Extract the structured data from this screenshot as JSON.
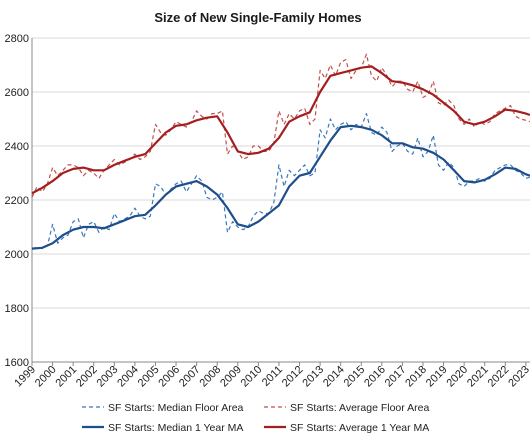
{
  "chart_data": {
    "type": "line",
    "title": "Size of New Single-Family Homes",
    "xlabel": "",
    "ylabel": "",
    "xlim": [
      1999,
      2023.2
    ],
    "ylim": [
      1600,
      2800
    ],
    "y_ticks": [
      "1600",
      "1800",
      "2000",
      "2200",
      "2400",
      "2600",
      "2800"
    ],
    "x_ticks": [
      "1999",
      "2000",
      "2001",
      "2002",
      "2003",
      "2004",
      "2005",
      "2006",
      "2007",
      "2008",
      "2009",
      "2010",
      "2011",
      "2012",
      "2013",
      "2014",
      "2015",
      "2016",
      "2017",
      "2018",
      "2019",
      "2020",
      "2021",
      "2022",
      "2023"
    ],
    "grid": true,
    "legend_position": "bottom",
    "series": [
      {
        "name": "SF Starts: Median Floor Area",
        "color": "#3a78b8",
        "style": "dashed",
        "x": [
          1999.0,
          1999.25,
          1999.5,
          1999.75,
          2000.0,
          2000.25,
          2000.5,
          2000.75,
          2001.0,
          2001.25,
          2001.5,
          2001.75,
          2002.0,
          2002.25,
          2002.5,
          2002.75,
          2003.0,
          2003.25,
          2003.5,
          2003.75,
          2004.0,
          2004.25,
          2004.5,
          2004.75,
          2005.0,
          2005.25,
          2005.5,
          2005.75,
          2006.0,
          2006.25,
          2006.5,
          2006.75,
          2007.0,
          2007.25,
          2007.5,
          2007.75,
          2008.0,
          2008.25,
          2008.5,
          2008.75,
          2009.0,
          2009.25,
          2009.5,
          2009.75,
          2010.0,
          2010.25,
          2010.5,
          2010.75,
          2011.0,
          2011.25,
          2011.5,
          2011.75,
          2012.0,
          2012.25,
          2012.5,
          2012.75,
          2013.0,
          2013.25,
          2013.5,
          2013.75,
          2014.0,
          2014.25,
          2014.5,
          2014.75,
          2015.0,
          2015.25,
          2015.5,
          2015.75,
          2016.0,
          2016.25,
          2016.5,
          2016.75,
          2017.0,
          2017.25,
          2017.5,
          2017.75,
          2018.0,
          2018.25,
          2018.5,
          2018.75,
          2019.0,
          2019.25,
          2019.5,
          2019.75,
          2020.0,
          2020.25,
          2020.5,
          2020.75,
          2021.0,
          2021.25,
          2021.5,
          2021.75,
          2022.0,
          2022.25,
          2022.5,
          2022.75,
          2023.0,
          2023.2
        ],
        "values": [
          2020,
          2025,
          2020,
          2030,
          2110,
          2040,
          2060,
          2070,
          2120,
          2130,
          2060,
          2110,
          2120,
          2080,
          2100,
          2090,
          2150,
          2120,
          2130,
          2140,
          2170,
          2140,
          2130,
          2140,
          2260,
          2250,
          2220,
          2240,
          2260,
          2270,
          2230,
          2260,
          2290,
          2270,
          2210,
          2200,
          2210,
          2230,
          2080,
          2120,
          2100,
          2090,
          2100,
          2140,
          2160,
          2150,
          2150,
          2190,
          2330,
          2250,
          2310,
          2290,
          2310,
          2330,
          2290,
          2300,
          2460,
          2430,
          2500,
          2460,
          2480,
          2490,
          2460,
          2480,
          2470,
          2520,
          2450,
          2440,
          2470,
          2450,
          2380,
          2400,
          2410,
          2380,
          2370,
          2430,
          2360,
          2380,
          2440,
          2330,
          2310,
          2340,
          2320,
          2260,
          2250,
          2270,
          2270,
          2280,
          2270,
          2280,
          2310,
          2320,
          2330,
          2330,
          2310,
          2300,
          2280,
          2285
        ]
      },
      {
        "name": "SF Starts: Average Floor Area",
        "color": "#c0504d",
        "style": "dashed",
        "x": [
          1999.0,
          1999.25,
          1999.5,
          1999.75,
          2000.0,
          2000.25,
          2000.5,
          2000.75,
          2001.0,
          2001.25,
          2001.5,
          2001.75,
          2002.0,
          2002.25,
          2002.5,
          2002.75,
          2003.0,
          2003.25,
          2003.5,
          2003.75,
          2004.0,
          2004.25,
          2004.5,
          2004.75,
          2005.0,
          2005.25,
          2005.5,
          2005.75,
          2006.0,
          2006.25,
          2006.5,
          2006.75,
          2007.0,
          2007.25,
          2007.5,
          2007.75,
          2008.0,
          2008.25,
          2008.5,
          2008.75,
          2009.0,
          2009.25,
          2009.5,
          2009.75,
          2010.0,
          2010.25,
          2010.5,
          2010.75,
          2011.0,
          2011.25,
          2011.5,
          2011.75,
          2012.0,
          2012.25,
          2012.5,
          2012.75,
          2013.0,
          2013.25,
          2013.5,
          2013.75,
          2014.0,
          2014.25,
          2014.5,
          2014.75,
          2015.0,
          2015.25,
          2015.5,
          2015.75,
          2016.0,
          2016.25,
          2016.5,
          2016.75,
          2017.0,
          2017.25,
          2017.5,
          2017.75,
          2018.0,
          2018.25,
          2018.5,
          2018.75,
          2019.0,
          2019.25,
          2019.5,
          2019.75,
          2020.0,
          2020.25,
          2020.5,
          2020.75,
          2021.0,
          2021.25,
          2021.5,
          2021.75,
          2022.0,
          2022.25,
          2022.5,
          2022.75,
          2023.0,
          2023.2
        ],
        "values": [
          2210,
          2250,
          2230,
          2260,
          2320,
          2290,
          2310,
          2330,
          2330,
          2320,
          2290,
          2310,
          2300,
          2280,
          2310,
          2330,
          2350,
          2330,
          2340,
          2350,
          2370,
          2350,
          2360,
          2380,
          2480,
          2450,
          2440,
          2460,
          2490,
          2480,
          2470,
          2490,
          2530,
          2510,
          2500,
          2520,
          2520,
          2530,
          2370,
          2400,
          2380,
          2350,
          2360,
          2400,
          2400,
          2380,
          2380,
          2410,
          2530,
          2480,
          2520,
          2500,
          2530,
          2540,
          2480,
          2500,
          2680,
          2650,
          2700,
          2660,
          2710,
          2720,
          2650,
          2680,
          2690,
          2740,
          2660,
          2640,
          2690,
          2660,
          2620,
          2640,
          2640,
          2610,
          2600,
          2640,
          2580,
          2590,
          2640,
          2560,
          2550,
          2570,
          2550,
          2500,
          2480,
          2500,
          2470,
          2490,
          2480,
          2490,
          2520,
          2530,
          2540,
          2550,
          2510,
          2500,
          2495,
          2490
        ]
      },
      {
        "name": "SF Starts: Median 1 Year MA",
        "color": "#1f4e8c",
        "style": "solid",
        "x": [
          1999.0,
          1999.5,
          2000.0,
          2000.5,
          2001.0,
          2001.5,
          2002.0,
          2002.5,
          2003.0,
          2003.5,
          2004.0,
          2004.5,
          2005.0,
          2005.5,
          2006.0,
          2006.5,
          2007.0,
          2007.5,
          2008.0,
          2008.5,
          2009.0,
          2009.5,
          2010.0,
          2010.5,
          2011.0,
          2011.5,
          2012.0,
          2012.5,
          2013.0,
          2013.5,
          2014.0,
          2014.5,
          2015.0,
          2015.5,
          2016.0,
          2016.5,
          2017.0,
          2017.5,
          2018.0,
          2018.5,
          2019.0,
          2019.5,
          2020.0,
          2020.5,
          2021.0,
          2021.5,
          2022.0,
          2022.5,
          2023.0,
          2023.2
        ],
        "values": [
          2020,
          2023,
          2040,
          2070,
          2090,
          2100,
          2100,
          2095,
          2110,
          2125,
          2140,
          2145,
          2180,
          2220,
          2250,
          2260,
          2270,
          2250,
          2220,
          2170,
          2110,
          2100,
          2120,
          2150,
          2180,
          2250,
          2290,
          2300,
          2360,
          2420,
          2470,
          2475,
          2470,
          2460,
          2440,
          2410,
          2410,
          2395,
          2390,
          2375,
          2350,
          2310,
          2270,
          2265,
          2275,
          2295,
          2320,
          2315,
          2295,
          2290
        ]
      },
      {
        "name": "SF Starts: Average 1 Year MA",
        "color": "#a31f1f",
        "style": "solid",
        "x": [
          1999.0,
          1999.5,
          2000.0,
          2000.5,
          2001.0,
          2001.5,
          2002.0,
          2002.5,
          2003.0,
          2003.5,
          2004.0,
          2004.5,
          2005.0,
          2005.5,
          2006.0,
          2006.5,
          2007.0,
          2007.5,
          2008.0,
          2008.5,
          2009.0,
          2009.5,
          2010.0,
          2010.5,
          2011.0,
          2011.5,
          2012.0,
          2012.5,
          2013.0,
          2013.5,
          2014.0,
          2014.5,
          2015.0,
          2015.5,
          2016.0,
          2016.5,
          2017.0,
          2017.5,
          2018.0,
          2018.5,
          2019.0,
          2019.5,
          2020.0,
          2020.5,
          2021.0,
          2021.5,
          2022.0,
          2022.5,
          2023.0,
          2023.2
        ],
        "values": [
          2225,
          2245,
          2270,
          2300,
          2315,
          2320,
          2310,
          2310,
          2330,
          2345,
          2360,
          2370,
          2410,
          2450,
          2475,
          2480,
          2495,
          2505,
          2510,
          2450,
          2380,
          2370,
          2375,
          2390,
          2430,
          2490,
          2510,
          2525,
          2600,
          2660,
          2670,
          2680,
          2690,
          2695,
          2670,
          2640,
          2635,
          2625,
          2610,
          2590,
          2560,
          2530,
          2490,
          2480,
          2490,
          2510,
          2535,
          2530,
          2520,
          2515
        ]
      }
    ]
  }
}
